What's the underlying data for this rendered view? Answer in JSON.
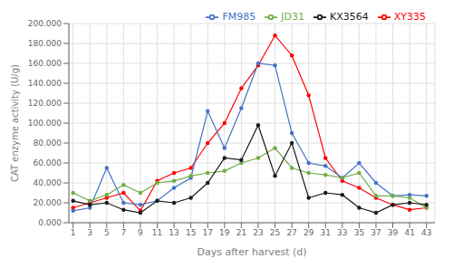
{
  "chart_data": {
    "type": "line",
    "x": [
      1,
      3,
      5,
      7,
      9,
      11,
      13,
      15,
      17,
      19,
      21,
      23,
      25,
      27,
      29,
      31,
      33,
      35,
      37,
      39,
      41,
      43
    ],
    "series": [
      {
        "name": "XY335",
        "color": "#ff0000",
        "marker": "o",
        "line_style": "solid",
        "values": [
          15000,
          20000,
          25000,
          30000,
          12000,
          42000,
          50000,
          55000,
          80000,
          100000,
          135000,
          158000,
          188000,
          168000,
          128000,
          65000,
          42000,
          35000,
          25000,
          18000,
          13000,
          15000
        ]
      },
      {
        "name": "FM985",
        "color": "#4472c4",
        "marker": "o",
        "line_style": "solid",
        "values": [
          12000,
          15000,
          55000,
          20000,
          18000,
          22000,
          35000,
          45000,
          112000,
          75000,
          115000,
          160000,
          158000,
          90000,
          60000,
          57000,
          45000,
          60000,
          40000,
          27000,
          28000,
          27000
        ]
      },
      {
        "name": "JD31",
        "color": "#70ad47",
        "marker": "o",
        "line_style": "solid",
        "values": [
          30000,
          22000,
          28000,
          38000,
          30000,
          40000,
          42000,
          47000,
          50000,
          52000,
          60000,
          65000,
          75000,
          55000,
          50000,
          48000,
          45000,
          50000,
          27000,
          27000,
          25000,
          15000
        ]
      },
      {
        "name": "KX3564",
        "color": "#1a1a1a",
        "marker": "o",
        "line_style": "solid",
        "values": [
          22000,
          18000,
          20000,
          13000,
          10000,
          22000,
          20000,
          25000,
          40000,
          65000,
          63000,
          98000,
          47000,
          80000,
          25000,
          30000,
          28000,
          15000,
          10000,
          18000,
          20000,
          18000
        ]
      }
    ],
    "x_label": "Days after harvest (d)",
    "y_label": "CAT enzyme activity (U/g)",
    "xlim": [
      0.5,
      44
    ],
    "xticks": [
      1,
      3,
      5,
      7,
      9,
      11,
      13,
      15,
      17,
      19,
      21,
      23,
      25,
      27,
      29,
      31,
      33,
      35,
      37,
      39,
      41,
      43
    ],
    "ylim": [
      0,
      200000
    ],
    "yticks": [
      {
        "value": 0,
        "label": "0.000"
      },
      {
        "value": 20000,
        "label": "20.000"
      },
      {
        "value": 40000,
        "label": "40.000"
      },
      {
        "value": 60000,
        "label": "60.000"
      },
      {
        "value": 80000,
        "label": "80.000"
      },
      {
        "value": 100000,
        "label": "100.000"
      },
      {
        "value": 120000,
        "label": "120.000"
      },
      {
        "value": 140000,
        "label": "140.000"
      },
      {
        "value": 160000,
        "label": "160.000"
      },
      {
        "value": 180000,
        "label": "180.000"
      },
      {
        "value": 200000,
        "label": "200.000"
      }
    ],
    "grid": true,
    "legend": "upper right"
  }
}
